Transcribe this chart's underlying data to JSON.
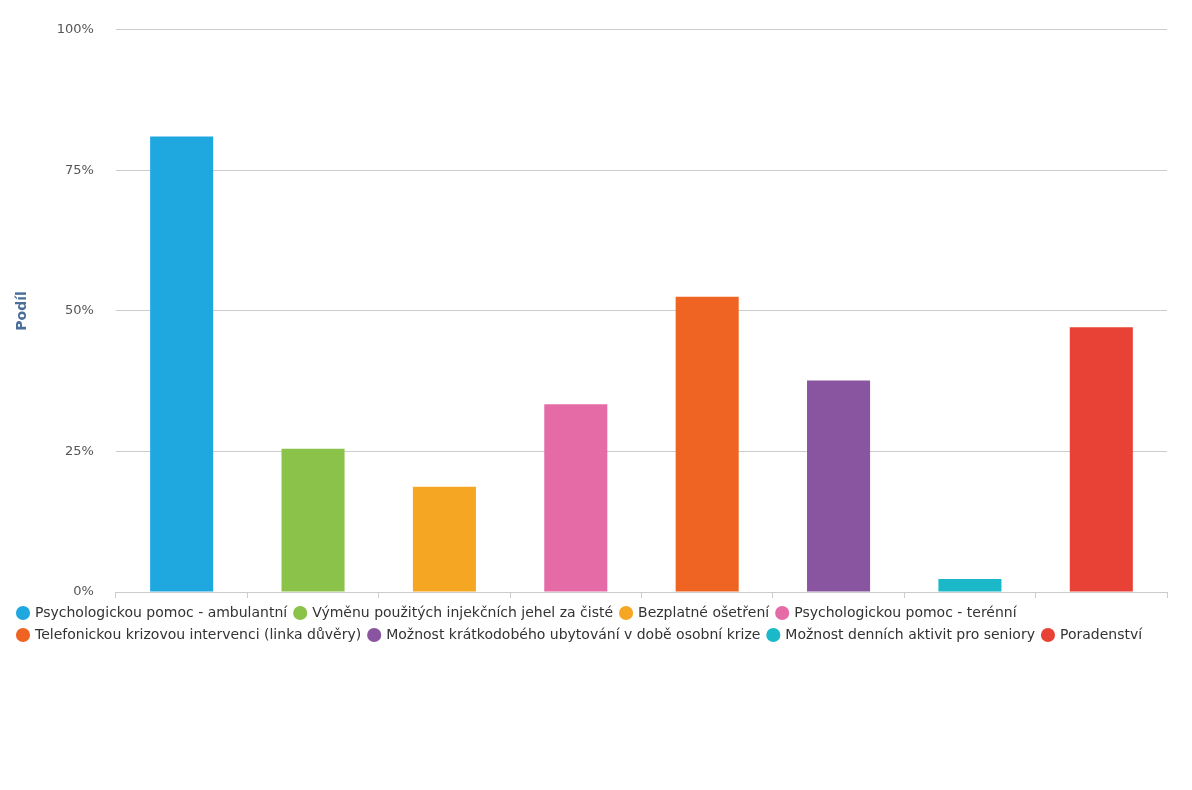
{
  "chart_data": {
    "type": "bar",
    "ylabel": "Podíl",
    "categories": [
      null,
      null,
      null,
      null,
      null,
      null,
      null,
      null
    ],
    "series": [
      {
        "name": "Psychologickou pomoc - ambulantní",
        "color": "#1fa8e0",
        "values": [
          81,
          null,
          null,
          null,
          null,
          null,
          null,
          null
        ]
      },
      {
        "name": "Výměnu použitých injekčních jehel za čisté",
        "color": "#8bc34a",
        "values": [
          null,
          25.5,
          null,
          null,
          null,
          null,
          null,
          null
        ]
      },
      {
        "name": "Bezplatné ošetření",
        "color": "#f5a623",
        "values": [
          null,
          null,
          18.7,
          null,
          null,
          null,
          null,
          null
        ]
      },
      {
        "name": "Psychologickou pomoc - terénní",
        "color": "#e46ba6",
        "values": [
          null,
          null,
          null,
          33.4,
          null,
          null,
          null,
          null
        ]
      },
      {
        "name": "Telefonickou krizovou intervenci (linka důvěry)",
        "color": "#ef6422",
        "values": [
          null,
          null,
          null,
          null,
          52.5,
          null,
          null,
          null
        ]
      },
      {
        "name": "Možnost krátkodobého ubytování v době osobní krize",
        "color": "#8a55a0",
        "values": [
          null,
          null,
          null,
          null,
          null,
          37.6,
          null,
          null
        ]
      },
      {
        "name": "Možnost denních aktivit pro seniory",
        "color": "#1ab8c8",
        "values": [
          null,
          null,
          null,
          null,
          null,
          null,
          2.3,
          null
        ]
      },
      {
        "name": "Poradenství",
        "color": "#e84236",
        "values": [
          null,
          null,
          null,
          null,
          null,
          null,
          null,
          47.1
        ]
      }
    ],
    "ylim": [
      0,
      100
    ],
    "yticks": [
      {
        "value": 0,
        "label": "0%"
      },
      {
        "value": 25,
        "label": "25%"
      },
      {
        "value": 50,
        "label": "50%"
      },
      {
        "value": 75,
        "label": "75%"
      },
      {
        "value": 100,
        "label": "100%"
      }
    ],
    "grid": "y",
    "legend": "bottom",
    "tick_labels": "y"
  }
}
